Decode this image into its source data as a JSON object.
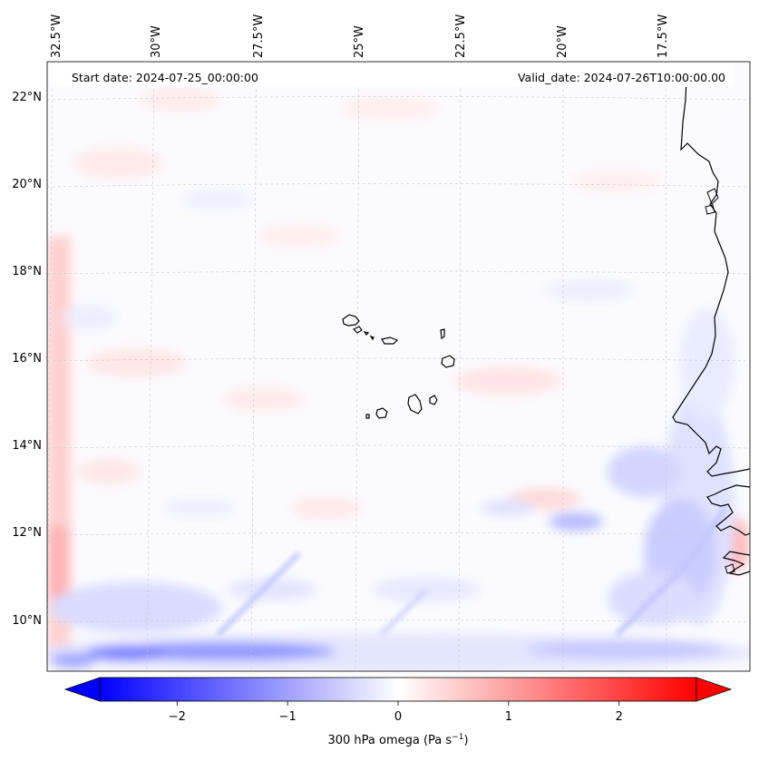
{
  "header": {
    "start_date": "Start date: 2024-07-25_00:00:00",
    "valid_date": "Valid_date: 2024-07-26T10:00:00.00"
  },
  "map": {
    "lon_labels": [
      "32.5°W",
      "30°W",
      "27.5°W",
      "25°W",
      "22.5°W",
      "20°W",
      "17.5°W"
    ],
    "lat_labels": [
      "22°N",
      "20°N",
      "18°N",
      "16°N",
      "14°N",
      "12°N",
      "10°N"
    ]
  },
  "colorbar": {
    "title": "300 hPa omega (Pa s",
    "title_sup": "−1",
    "title_end": ")",
    "ticks": [
      "−2",
      "−1",
      "0",
      "1",
      "2"
    ],
    "vmin": -2.7,
    "vmax": 2.7,
    "colors": {
      "negative": "#0000ff",
      "zero": "#ffffff",
      "positive": "#ff0000"
    }
  }
}
